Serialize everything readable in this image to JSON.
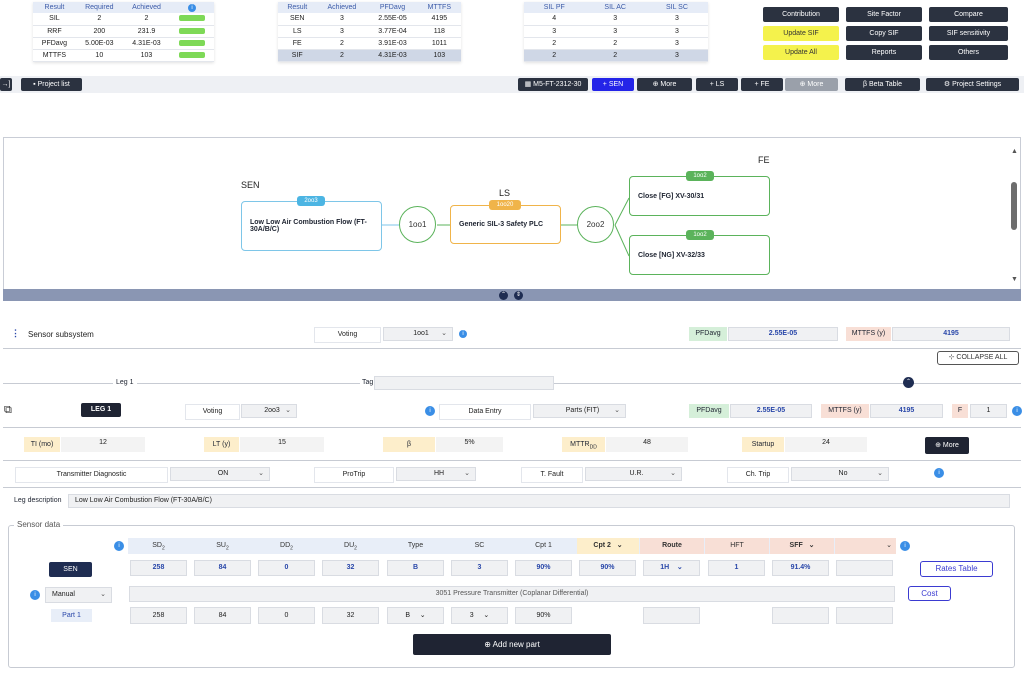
{
  "summary_result": {
    "headers": [
      "Result",
      "Required",
      "Achieved",
      "i"
    ],
    "rows": [
      {
        "label": "SIL",
        "required": "2",
        "achieved": "2"
      },
      {
        "label": "RRF",
        "required": "200",
        "achieved": "231.9"
      },
      {
        "label": "PFDavg",
        "required": "5.00E-03",
        "achieved": "4.31E-03"
      },
      {
        "label": "MTTFS",
        "required": "10",
        "achieved": "103"
      }
    ]
  },
  "summary_sub": {
    "headers": [
      "Result",
      "Achieved",
      "PFDavg",
      "MTTFS"
    ],
    "rows": [
      {
        "label": "SEN",
        "achieved": "3",
        "pfd": "2.55E-05",
        "mttfs": "4195"
      },
      {
        "label": "LS",
        "achieved": "3",
        "pfd": "3.77E-04",
        "mttfs": "118"
      },
      {
        "label": "FE",
        "achieved": "2",
        "pfd": "3.91E-03",
        "mttfs": "1011"
      },
      {
        "label": "SIF",
        "achieved": "2",
        "pfd": "4.31E-03",
        "mttfs": "103"
      }
    ]
  },
  "summary_sil": {
    "headers": [
      "SIL PF",
      "SIL AC",
      "SIL SC"
    ],
    "rows": [
      [
        "4",
        "3",
        "3"
      ],
      [
        "3",
        "3",
        "3"
      ],
      [
        "2",
        "2",
        "3"
      ],
      [
        "2",
        "2",
        "3"
      ]
    ]
  },
  "right_buttons": [
    "Contribution",
    "Site Factor",
    "Compare",
    "Update SIF",
    "Copy SIF",
    "SIF sensitivity",
    "Update All",
    "Reports",
    "Others"
  ],
  "toolbar": {
    "collapse_icon": "→]",
    "project_list": "Project list",
    "sif_id": "M5-FT-2312-30",
    "sen": "+ SEN",
    "more1": "More",
    "ls": "+ LS",
    "fe": "+ FE",
    "more2": "More",
    "beta_table": "Beta Table",
    "project_settings": "Project Settings"
  },
  "diagram": {
    "sen_title": "SEN",
    "ls_title": "LS",
    "fe_title": "FE",
    "sen_vote": "2oo3",
    "sen_node": "Low Low Air Combustion Flow (FT-30A/B/C)",
    "vote_1oo1": "1oo1",
    "ls_vote": "1oo20",
    "ls_node": "Generic SIL-3 Safety PLC",
    "vote_2oo2": "2oo2",
    "fe1_vote": "1oo2",
    "fe1_node": "Close [FG] XV-30/31",
    "fe2_vote": "1oo2",
    "fe2_node": "Close [NG] XV-32/33"
  },
  "subsystem": {
    "title": "Sensor subsystem",
    "voting_label": "Voting",
    "voting_value": "1oo1",
    "pfd_label": "PFDavg",
    "pfd_value": "2.55E-05",
    "mttfs_label": "MTTFS (y)",
    "mttfs_value": "4195",
    "collapse_all": "COLLAPSE ALL"
  },
  "leg": {
    "section_label": "Leg 1",
    "tag_label": "Tag",
    "tag_value": "",
    "leg_button": "LEG 1",
    "voting_label": "Voting",
    "voting_value": "2oo3",
    "data_entry_label": "Data Entry",
    "data_entry_value": "Parts (FIT)",
    "pfd_label": "PFDavg",
    "pfd_value": "2.55E-05",
    "mttfs_label": "MTTFS (y)",
    "mttfs_value": "4195",
    "f_label": "F",
    "f_value": "1"
  },
  "params": {
    "ti_label": "TI (mo)",
    "ti_value": "12",
    "lt_label": "LT (y)",
    "lt_value": "15",
    "beta_label": "β",
    "beta_value": "5%",
    "mttr_label": "MTTR",
    "mttr_sub": "DD",
    "mttr_value": "48",
    "startup_label": "Startup",
    "startup_value": "24",
    "more": "More"
  },
  "options": {
    "td_label": "Transmitter Diagnostic",
    "td_value": "ON",
    "protrip_label": "ProTrip",
    "protrip_value": "HH",
    "tfault_label": "T. Fault",
    "tfault_value": "U.R.",
    "chtrip_label": "Ch. Trip",
    "chtrip_value": "No"
  },
  "leg_description": {
    "label": "Leg description",
    "value": "Low Low Air Combustion Flow (FT-30A/B/C)"
  },
  "sensor_data": {
    "title": "Sensor data",
    "headers": [
      {
        "label": "SD",
        "sub": "2"
      },
      {
        "label": "SU",
        "sub": "2"
      },
      {
        "label": "DD",
        "sub": "2"
      },
      {
        "label": "DU",
        "sub": "2"
      },
      {
        "label": "Type",
        "sub": ""
      },
      {
        "label": "SC",
        "sub": ""
      },
      {
        "label": "Cpt 1",
        "sub": ""
      },
      {
        "label": "Cpt 2",
        "sub": ""
      },
      {
        "label": "Route",
        "sub": ""
      },
      {
        "label": "HFT",
        "sub": ""
      },
      {
        "label": "SFF",
        "sub": ""
      }
    ],
    "sen_label": "SEN",
    "sen_values": [
      "258",
      "84",
      "0",
      "32",
      "B",
      "3",
      "90%",
      "90%",
      "1H",
      "1",
      "91.4%",
      ""
    ],
    "rates_table": "Rates Table",
    "mode_value": "Manual",
    "part_desc": "3051 Pressure Transmitter (Coplanar Differential)",
    "cost": "Cost",
    "part_label": "Part 1",
    "part_values": [
      "258",
      "84",
      "0",
      "32",
      "B",
      "3",
      "90%"
    ],
    "add_part": "Add new part"
  }
}
